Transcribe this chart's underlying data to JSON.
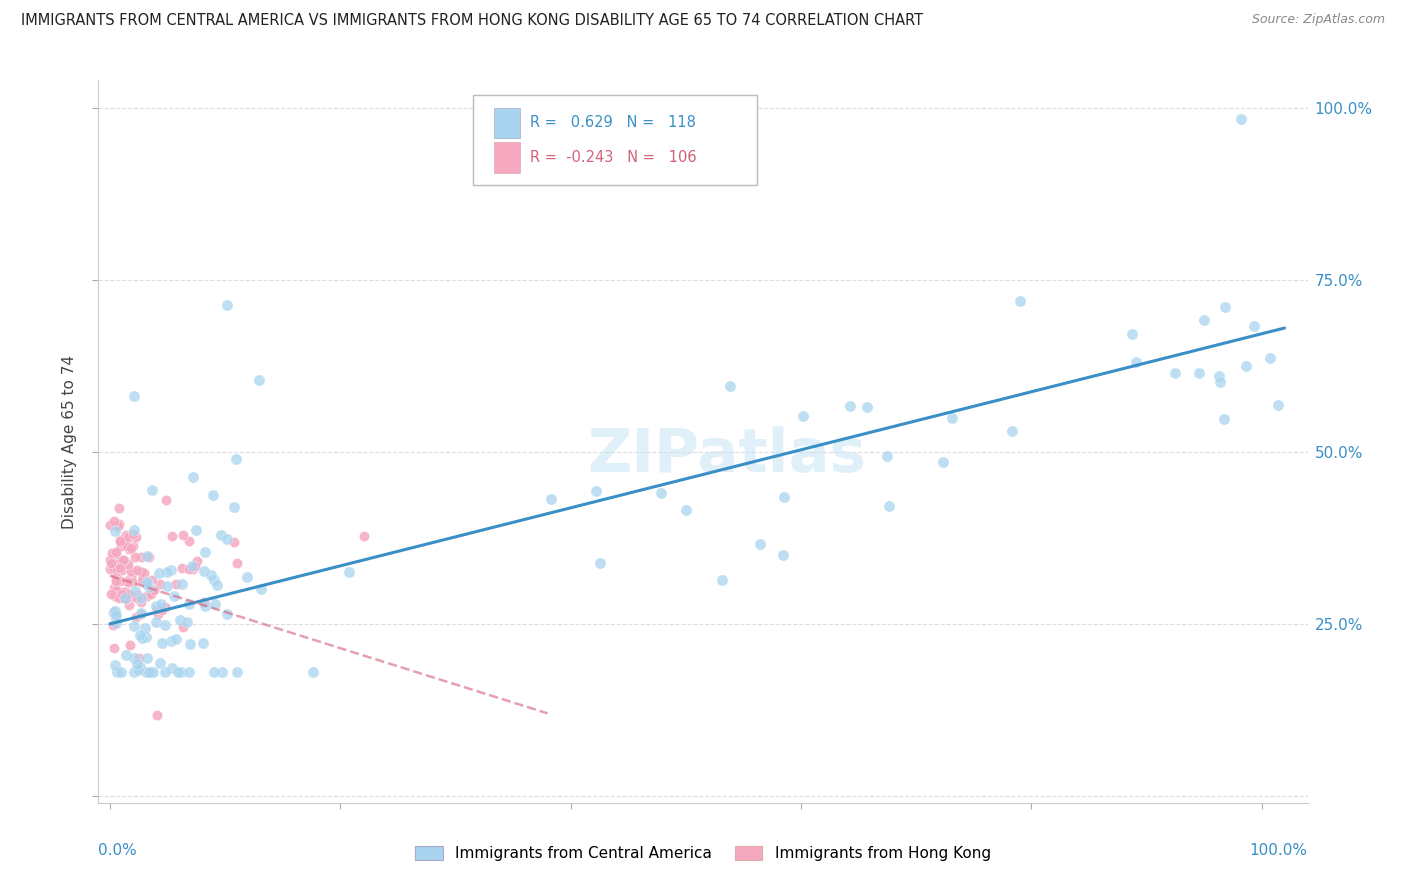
{
  "title": "IMMIGRANTS FROM CENTRAL AMERICA VS IMMIGRANTS FROM HONG KONG DISABILITY AGE 65 TO 74 CORRELATION CHART",
  "source": "Source: ZipAtlas.com",
  "ylabel": "Disability Age 65 to 74",
  "r_central": 0.629,
  "n_central": 118,
  "r_hongkong": -0.243,
  "n_hongkong": 106,
  "color_central": "#a8d4f0",
  "color_hongkong": "#f5a8c0",
  "line_central": "#3a8fc7",
  "line_hongkong": "#d4607a",
  "watermark": "ZIPatlas",
  "grid_color": "#dddddd",
  "legend_label_central": "Immigrants from Central America",
  "legend_label_hongkong": "Immigrants from Hong Kong"
}
